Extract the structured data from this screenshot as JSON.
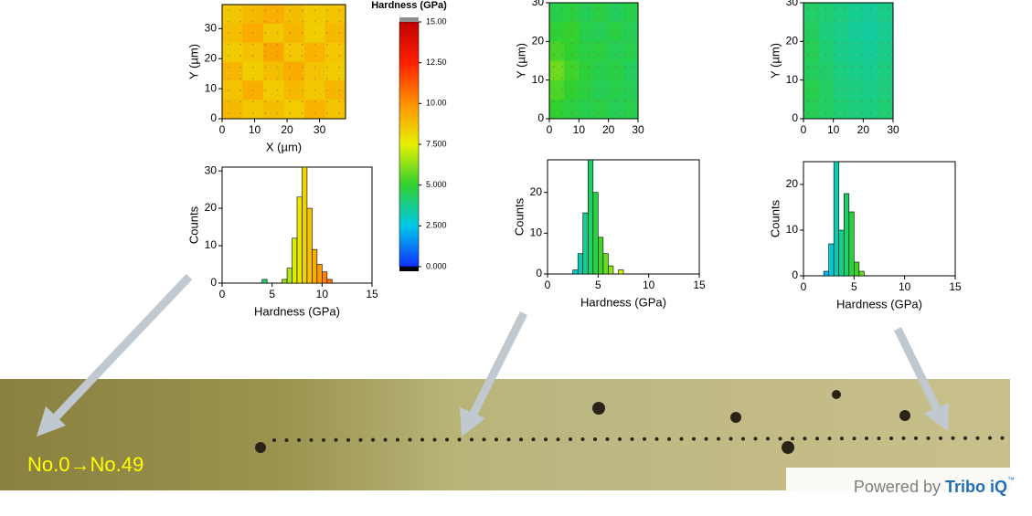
{
  "chart_data": [
    {
      "type": "heatmap",
      "xlabel": "X (µm)",
      "ylabel": "Y (µm)",
      "xlim": [
        0,
        38
      ],
      "ylim": [
        0,
        38
      ],
      "xticks": [
        0,
        10,
        20,
        30
      ],
      "yticks": [
        0,
        10,
        20,
        30
      ],
      "z": [
        [
          8.6,
          8.9,
          9.2,
          8.8,
          8.5,
          8.7
        ],
        [
          8.8,
          9.3,
          8.6,
          9.0,
          8.4,
          8.9
        ],
        [
          8.5,
          8.7,
          9.4,
          8.6,
          9.1,
          8.6
        ],
        [
          9.0,
          8.4,
          8.8,
          9.3,
          8.7,
          8.5
        ],
        [
          8.7,
          9.2,
          8.5,
          8.9,
          8.6,
          9.0
        ],
        [
          8.9,
          8.6,
          8.8,
          8.5,
          9.1,
          8.7
        ]
      ]
    },
    {
      "type": "histogram",
      "xlabel": "Hardness (GPa)",
      "ylabel": "Counts",
      "xlim": [
        0,
        15
      ],
      "ylim": [
        0,
        31
      ],
      "xticks": [
        0,
        5,
        10,
        15
      ],
      "yticks": [
        0,
        10,
        20,
        30
      ],
      "bins": [
        4,
        4.5,
        5,
        5.5,
        6,
        6.5,
        7,
        7.5,
        8,
        8.5,
        9,
        9.5,
        10,
        10.5,
        11
      ],
      "counts": [
        1,
        0,
        0,
        0,
        1,
        4,
        12,
        23,
        31,
        20,
        9,
        5,
        3,
        1
      ]
    },
    {
      "type": "colorbar",
      "title": "Hardness (GPa)",
      "ylim": [
        0,
        15
      ],
      "yticks": [
        {
          "value": 0,
          "label": "0.000"
        },
        {
          "value": 2.5,
          "label": "2.500"
        },
        {
          "value": 5,
          "label": "5.000"
        },
        {
          "value": 7.5,
          "label": "7.500"
        },
        {
          "value": 10,
          "label": "10.00"
        },
        {
          "value": 12.5,
          "label": "12.50"
        },
        {
          "value": 15,
          "label": "15.00"
        }
      ],
      "colormap": [
        "#1030ff",
        "#00c8e8",
        "#30d030",
        "#e8f000",
        "#ff9000",
        "#ff2000",
        "#c00000"
      ]
    },
    {
      "type": "heatmap",
      "ylabel": "Y (µm)",
      "xlim": [
        0,
        30
      ],
      "ylim": [
        0,
        30
      ],
      "xticks": [
        0,
        10,
        20,
        30
      ],
      "yticks": [
        0,
        10,
        20,
        30
      ],
      "z": [
        [
          4.6,
          4.8,
          4.5,
          4.7,
          4.4,
          4.6
        ],
        [
          4.9,
          5.1,
          4.6,
          4.5,
          4.7,
          4.5
        ],
        [
          5.3,
          5.0,
          4.7,
          4.8,
          4.5,
          4.6
        ],
        [
          5.8,
          5.2,
          4.9,
          4.6,
          4.7,
          4.4
        ],
        [
          5.4,
          5.0,
          4.8,
          4.5,
          4.6,
          4.5
        ],
        [
          5.0,
          4.8,
          4.6,
          4.7,
          4.5,
          4.6
        ]
      ]
    },
    {
      "type": "histogram",
      "xlabel": "Hardness (GPa)",
      "ylabel": "Counts",
      "xlim": [
        0,
        15
      ],
      "ylim": [
        0,
        28
      ],
      "xticks": [
        0,
        5,
        10,
        15
      ],
      "yticks": [
        0,
        10,
        20
      ],
      "bins": [
        2.5,
        3,
        3.5,
        4,
        4.5,
        5,
        5.5,
        6,
        6.5,
        7,
        7.5
      ],
      "counts": [
        1,
        5,
        15,
        28,
        20,
        9,
        5,
        2,
        0,
        1
      ]
    },
    {
      "type": "heatmap",
      "ylabel": "Y (µm)",
      "xlim": [
        0,
        30
      ],
      "ylim": [
        0,
        30
      ],
      "xticks": [
        0,
        10,
        20,
        30
      ],
      "yticks": [
        0,
        10,
        20,
        30
      ],
      "z": [
        [
          4.3,
          4.1,
          3.9,
          3.7,
          3.6,
          3.8
        ],
        [
          4.4,
          4.0,
          3.8,
          3.6,
          3.5,
          3.7
        ],
        [
          4.5,
          4.1,
          3.8,
          3.7,
          3.6,
          3.8
        ],
        [
          4.4,
          4.2,
          3.9,
          3.8,
          3.7,
          3.9
        ],
        [
          4.6,
          4.3,
          4.0,
          3.9,
          3.8,
          4.0
        ],
        [
          4.5,
          4.3,
          4.1,
          4.0,
          3.9,
          4.1
        ]
      ]
    },
    {
      "type": "histogram",
      "xlabel": "Hardness (GPa)",
      "ylabel": "Counts",
      "xlim": [
        0,
        15
      ],
      "ylim": [
        0,
        25
      ],
      "xticks": [
        0,
        5,
        10,
        15
      ],
      "yticks": [
        0,
        10,
        20
      ],
      "bins": [
        2,
        2.5,
        3,
        3.5,
        4,
        4.5,
        5,
        5.5,
        6
      ],
      "counts": [
        1,
        7,
        25,
        10,
        18,
        14,
        3,
        1
      ]
    }
  ],
  "caption": "No.0→No.49",
  "branding": {
    "prefix": "Powered by",
    "brand": "Tribo iQ",
    "mark": "™"
  }
}
